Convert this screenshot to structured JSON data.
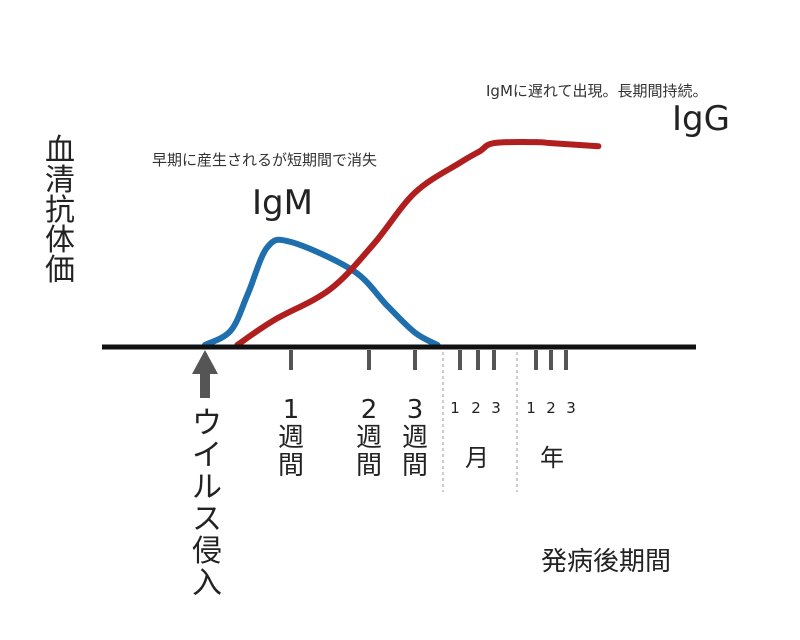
{
  "chart_data": {
    "type": "line",
    "title": "",
    "ylabel": "血清抗体価",
    "xlabel": "発病後期間",
    "colors": {
      "IgM": "#1f6fae",
      "IgG": "#b01e1e",
      "axis": "#111111",
      "tick": "#555555"
    },
    "x_ticks": {
      "weeks": [
        {
          "number": "1",
          "unit": "週間",
          "x": 1
        },
        {
          "number": "2",
          "unit": "週間",
          "x": 2
        },
        {
          "number": "3",
          "unit": "週間",
          "x": 3
        }
      ],
      "months": {
        "numbers": [
          "1",
          "2",
          "3"
        ],
        "label": "月",
        "x": [
          4,
          5,
          6
        ]
      },
      "years": {
        "numbers": [
          "1",
          "2",
          "3"
        ],
        "label": "年",
        "x": [
          7,
          8,
          9
        ]
      }
    },
    "series": [
      {
        "name": "IgM",
        "label": "IgM",
        "annotation": "早期に産生されるが短期間で消失",
        "color": "#1f6fae",
        "x": [
          -1,
          -0.4,
          0,
          0.45,
          1,
          1.8,
          2.4,
          3,
          3.5
        ],
        "y": [
          0,
          0.14,
          0.5,
          0.95,
          1.0,
          0.72,
          0.38,
          0.12,
          0
        ]
      },
      {
        "name": "IgG",
        "label": "IgG",
        "annotation": "IgMに遅れて出現。長期間持続。",
        "color": "#b01e1e",
        "x": [
          -0.25,
          0.6,
          1.5,
          2.1,
          3.0,
          4.0,
          5.1,
          6.0,
          7.0,
          8.0,
          9.3
        ],
        "y": [
          0,
          0.24,
          0.54,
          0.98,
          1.48,
          1.77,
          1.88,
          1.96,
          1.97,
          1.96,
          1.93
        ]
      }
    ],
    "infection_marker": {
      "label": "ウイルス侵入",
      "x": -1
    }
  }
}
